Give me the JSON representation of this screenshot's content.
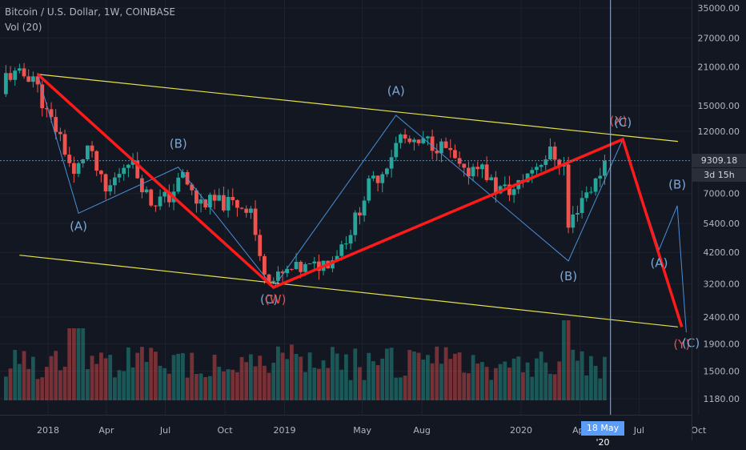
{
  "header": {
    "title": "Bitcoin / U.S. Dollar, 1W, COINBASE",
    "indicator": "Vol (20)"
  },
  "price_axis": {
    "last_price": "9309.18",
    "countdown": "3d 15h",
    "ticks": [
      "35000.00",
      "27000.00",
      "21000.00",
      "15000.00",
      "12000.00",
      "7000.00",
      "5400.00",
      "4200.00",
      "3200.00",
      "2400.00",
      "1900.00",
      "1500.00",
      "1180.00"
    ]
  },
  "time_axis": {
    "ticks": [
      "2018",
      "Apr",
      "Jul",
      "Oct",
      "2019",
      "May",
      "Aug",
      "2020",
      "Apr",
      "Jul",
      "Oct"
    ],
    "crosshair_label": "18 May '20"
  },
  "colors": {
    "background": "#131722",
    "up": "#26a69a",
    "down": "#ef5350",
    "channel": "#e6e14a",
    "primary_wave": "#ff1a1a",
    "secondary_wave": "#4a8fd6",
    "wave_label_blue": "#7aa7d6",
    "wave_label_red": "#e05252"
  },
  "chart_data": {
    "type": "candlestick",
    "title": "Bitcoin / U.S. Dollar, 1W, COINBASE",
    "y_scale": "log",
    "ylim": [
      1050,
      38000
    ],
    "xlim": [
      "2017-11-04",
      "2020-10-17"
    ],
    "last_price": 9309.18,
    "trend": [
      {
        "date": "2017-12-09",
        "price": 19500
      },
      {
        "date": "2017-12-30",
        "price": 14000
      },
      {
        "date": "2018-01-20",
        "price": 11500
      },
      {
        "date": "2018-02-10",
        "price": 8100
      },
      {
        "date": "2018-03-03",
        "price": 10500
      },
      {
        "date": "2018-03-31",
        "price": 7000
      },
      {
        "date": "2018-05-05",
        "price": 9600
      },
      {
        "date": "2018-06-09",
        "price": 6500
      },
      {
        "date": "2018-07-07",
        "price": 6800
      },
      {
        "date": "2018-07-28",
        "price": 8200
      },
      {
        "date": "2018-08-18",
        "price": 6500
      },
      {
        "date": "2018-09-15",
        "price": 6500
      },
      {
        "date": "2018-10-13",
        "price": 6400
      },
      {
        "date": "2018-11-10",
        "price": 6200
      },
      {
        "date": "2018-11-24",
        "price": 3900
      },
      {
        "date": "2018-12-15",
        "price": 3300
      },
      {
        "date": "2019-01-12",
        "price": 3600
      },
      {
        "date": "2019-02-16",
        "price": 3700
      },
      {
        "date": "2019-03-16",
        "price": 4000
      },
      {
        "date": "2019-04-13",
        "price": 5100
      },
      {
        "date": "2019-05-11",
        "price": 7500
      },
      {
        "date": "2019-06-01",
        "price": 8500
      },
      {
        "date": "2019-06-29",
        "price": 11500
      },
      {
        "date": "2019-07-20",
        "price": 10500
      },
      {
        "date": "2019-08-10",
        "price": 11000
      },
      {
        "date": "2019-09-07",
        "price": 10300
      },
      {
        "date": "2019-10-05",
        "price": 8200
      },
      {
        "date": "2019-10-26",
        "price": 9200
      },
      {
        "date": "2019-11-23",
        "price": 7300
      },
      {
        "date": "2019-12-21",
        "price": 7200
      },
      {
        "date": "2020-01-18",
        "price": 8700
      },
      {
        "date": "2020-02-15",
        "price": 10000
      },
      {
        "date": "2020-03-07",
        "price": 8900
      },
      {
        "date": "2020-03-14",
        "price": 5200
      },
      {
        "date": "2020-04-04",
        "price": 6800
      },
      {
        "date": "2020-04-25",
        "price": 7700
      },
      {
        "date": "2020-05-09",
        "price": 9309.18
      }
    ],
    "volume_scale": "relative",
    "channel_lines": [
      {
        "name": "upper",
        "from": {
          "date": "2017-12-16",
          "price": 19700
        },
        "to": {
          "date": "2020-08-30",
          "price": 11000
        }
      },
      {
        "name": "lower",
        "from": {
          "date": "2017-11-18",
          "price": 4100
        },
        "to": {
          "date": "2020-08-30",
          "price": 2200
        }
      }
    ],
    "primary_wave": {
      "points": [
        {
          "date": "2017-12-16",
          "price": 19700
        },
        {
          "date": "2018-12-15",
          "price": 3100
        },
        {
          "date": "2020-06-06",
          "price": 11200
        },
        {
          "date": "2020-09-05",
          "price": 2200
        }
      ]
    },
    "secondary_wave": {
      "points": [
        {
          "date": "2017-12-16",
          "price": 19700
        },
        {
          "date": "2018-02-17",
          "price": 5900
        },
        {
          "date": "2018-07-21",
          "price": 8800
        },
        {
          "date": "2018-12-15",
          "price": 3100
        },
        {
          "date": "2019-06-22",
          "price": 13800
        },
        {
          "date": "2020-03-14",
          "price": 3900
        },
        {
          "date": "2020-06-06",
          "price": 11200
        },
        {
          "date": "2020-08-01",
          "price": 4300
        },
        {
          "date": "2020-08-29",
          "price": 6300
        },
        {
          "date": "2020-09-12",
          "price": 2100
        }
      ]
    },
    "wave_labels": [
      {
        "text": "(A)",
        "date": "2018-02-17",
        "price": 5100,
        "color": "blue"
      },
      {
        "text": "(B)",
        "date": "2018-07-21",
        "price": 10400,
        "color": "blue"
      },
      {
        "text": "(C)",
        "date": "2018-12-08",
        "price": 2700,
        "color": "blue"
      },
      {
        "text": "(W)",
        "date": "2018-12-18",
        "price": 2700,
        "color": "red"
      },
      {
        "text": "(A)",
        "date": "2019-06-22",
        "price": 16500,
        "color": "blue"
      },
      {
        "text": "(B)",
        "date": "2020-03-14",
        "price": 3300,
        "color": "blue"
      },
      {
        "text": "(X)",
        "date": "2020-05-30",
        "price": 12700,
        "color": "red"
      },
      {
        "text": "(C)",
        "date": "2020-06-06",
        "price": 12500,
        "color": "blue"
      },
      {
        "text": "(A)",
        "date": "2020-08-01",
        "price": 3700,
        "color": "blue"
      },
      {
        "text": "(B)",
        "date": "2020-08-29",
        "price": 7300,
        "color": "blue"
      },
      {
        "text": "(Y)",
        "date": "2020-09-05",
        "price": 1830,
        "color": "red"
      },
      {
        "text": "(C)",
        "date": "2020-09-19",
        "price": 1850,
        "color": "blue"
      }
    ]
  }
}
